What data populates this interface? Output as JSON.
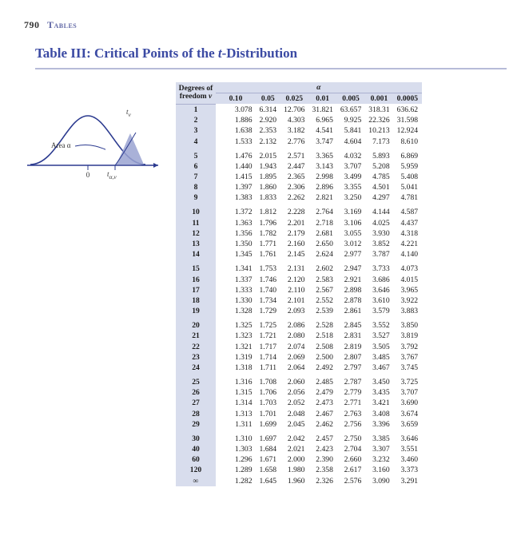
{
  "page": {
    "number": "790",
    "section": "Tables"
  },
  "title": {
    "prefix": "Table III: Critical Points of the ",
    "t": "t",
    "suffix": "-Distribution"
  },
  "figure": {
    "area_label": "Area α",
    "stat_label": "tα,ν",
    "curve_color": "#2b3a8f",
    "axis_color": "#2b3a8f",
    "fill_color": "#9aa3d1",
    "background": "#ffffff"
  },
  "table": {
    "header": {
      "dof_line1": "Degrees of",
      "dof_line2": "freedom ν",
      "alpha_symbol": "α",
      "alphas": [
        "0.10",
        "0.05",
        "0.025",
        "0.01",
        "0.005",
        "0.001",
        "0.0005"
      ]
    },
    "header_bg": "#d8dded",
    "groups": [
      {
        "rows": [
          {
            "df": "1",
            "v": [
              "3.078",
              "6.314",
              "12.706",
              "31.821",
              "63.657",
              "318.31",
              "636.62"
            ]
          },
          {
            "df": "2",
            "v": [
              "1.886",
              "2.920",
              "4.303",
              "6.965",
              "9.925",
              "22.326",
              "31.598"
            ]
          },
          {
            "df": "3",
            "v": [
              "1.638",
              "2.353",
              "3.182",
              "4.541",
              "5.841",
              "10.213",
              "12.924"
            ]
          },
          {
            "df": "4",
            "v": [
              "1.533",
              "2.132",
              "2.776",
              "3.747",
              "4.604",
              "7.173",
              "8.610"
            ]
          }
        ]
      },
      {
        "rows": [
          {
            "df": "5",
            "v": [
              "1.476",
              "2.015",
              "2.571",
              "3.365",
              "4.032",
              "5.893",
              "6.869"
            ]
          },
          {
            "df": "6",
            "v": [
              "1.440",
              "1.943",
              "2.447",
              "3.143",
              "3.707",
              "5.208",
              "5.959"
            ]
          },
          {
            "df": "7",
            "v": [
              "1.415",
              "1.895",
              "2.365",
              "2.998",
              "3.499",
              "4.785",
              "5.408"
            ]
          },
          {
            "df": "8",
            "v": [
              "1.397",
              "1.860",
              "2.306",
              "2.896",
              "3.355",
              "4.501",
              "5.041"
            ]
          },
          {
            "df": "9",
            "v": [
              "1.383",
              "1.833",
              "2.262",
              "2.821",
              "3.250",
              "4.297",
              "4.781"
            ]
          }
        ]
      },
      {
        "rows": [
          {
            "df": "10",
            "v": [
              "1.372",
              "1.812",
              "2.228",
              "2.764",
              "3.169",
              "4.144",
              "4.587"
            ]
          },
          {
            "df": "11",
            "v": [
              "1.363",
              "1.796",
              "2.201",
              "2.718",
              "3.106",
              "4.025",
              "4.437"
            ]
          },
          {
            "df": "12",
            "v": [
              "1.356",
              "1.782",
              "2.179",
              "2.681",
              "3.055",
              "3.930",
              "4.318"
            ]
          },
          {
            "df": "13",
            "v": [
              "1.350",
              "1.771",
              "2.160",
              "2.650",
              "3.012",
              "3.852",
              "4.221"
            ]
          },
          {
            "df": "14",
            "v": [
              "1.345",
              "1.761",
              "2.145",
              "2.624",
              "2.977",
              "3.787",
              "4.140"
            ]
          }
        ]
      },
      {
        "rows": [
          {
            "df": "15",
            "v": [
              "1.341",
              "1.753",
              "2.131",
              "2.602",
              "2.947",
              "3.733",
              "4.073"
            ]
          },
          {
            "df": "16",
            "v": [
              "1.337",
              "1.746",
              "2.120",
              "2.583",
              "2.921",
              "3.686",
              "4.015"
            ]
          },
          {
            "df": "17",
            "v": [
              "1.333",
              "1.740",
              "2.110",
              "2.567",
              "2.898",
              "3.646",
              "3.965"
            ]
          },
          {
            "df": "18",
            "v": [
              "1.330",
              "1.734",
              "2.101",
              "2.552",
              "2.878",
              "3.610",
              "3.922"
            ]
          },
          {
            "df": "19",
            "v": [
              "1.328",
              "1.729",
              "2.093",
              "2.539",
              "2.861",
              "3.579",
              "3.883"
            ]
          }
        ]
      },
      {
        "rows": [
          {
            "df": "20",
            "v": [
              "1.325",
              "1.725",
              "2.086",
              "2.528",
              "2.845",
              "3.552",
              "3.850"
            ]
          },
          {
            "df": "21",
            "v": [
              "1.323",
              "1.721",
              "2.080",
              "2.518",
              "2.831",
              "3.527",
              "3.819"
            ]
          },
          {
            "df": "22",
            "v": [
              "1.321",
              "1.717",
              "2.074",
              "2.508",
              "2.819",
              "3.505",
              "3.792"
            ]
          },
          {
            "df": "23",
            "v": [
              "1.319",
              "1.714",
              "2.069",
              "2.500",
              "2.807",
              "3.485",
              "3.767"
            ]
          },
          {
            "df": "24",
            "v": [
              "1.318",
              "1.711",
              "2.064",
              "2.492",
              "2.797",
              "3.467",
              "3.745"
            ]
          }
        ]
      },
      {
        "rows": [
          {
            "df": "25",
            "v": [
              "1.316",
              "1.708",
              "2.060",
              "2.485",
              "2.787",
              "3.450",
              "3.725"
            ]
          },
          {
            "df": "26",
            "v": [
              "1.315",
              "1.706",
              "2.056",
              "2.479",
              "2.779",
              "3.435",
              "3.707"
            ]
          },
          {
            "df": "27",
            "v": [
              "1.314",
              "1.703",
              "2.052",
              "2.473",
              "2.771",
              "3.421",
              "3.690"
            ]
          },
          {
            "df": "28",
            "v": [
              "1.313",
              "1.701",
              "2.048",
              "2.467",
              "2.763",
              "3.408",
              "3.674"
            ]
          },
          {
            "df": "29",
            "v": [
              "1.311",
              "1.699",
              "2.045",
              "2.462",
              "2.756",
              "3.396",
              "3.659"
            ]
          }
        ]
      },
      {
        "rows": [
          {
            "df": "30",
            "v": [
              "1.310",
              "1.697",
              "2.042",
              "2.457",
              "2.750",
              "3.385",
              "3.646"
            ]
          },
          {
            "df": "40",
            "v": [
              "1.303",
              "1.684",
              "2.021",
              "2.423",
              "2.704",
              "3.307",
              "3.551"
            ]
          },
          {
            "df": "60",
            "v": [
              "1.296",
              "1.671",
              "2.000",
              "2.390",
              "2.660",
              "3.232",
              "3.460"
            ]
          },
          {
            "df": "120",
            "v": [
              "1.289",
              "1.658",
              "1.980",
              "2.358",
              "2.617",
              "3.160",
              "3.373"
            ]
          },
          {
            "df": "∞",
            "v": [
              "1.282",
              "1.645",
              "1.960",
              "2.326",
              "2.576",
              "3.090",
              "3.291"
            ]
          }
        ]
      }
    ]
  }
}
